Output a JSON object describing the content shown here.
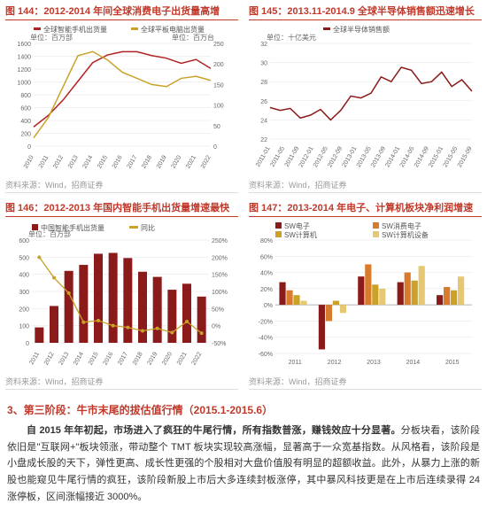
{
  "c144": {
    "title": "图 144：2012-2014 年间全球消费电子出货量高增",
    "source": "资料来源：Wind，招商证券",
    "unit_left": "单位：百万部",
    "unit_right": "单位：百万台",
    "legend": [
      "全球智能手机出货量",
      "全球平板电脑出货量"
    ],
    "colors": [
      "#b22222",
      "#c9a227"
    ],
    "years": [
      "2010",
      "2011",
      "2012",
      "2013",
      "2014",
      "2015",
      "2016",
      "2017",
      "2018",
      "2019",
      "2020",
      "2021",
      "2022"
    ],
    "series1": [
      300,
      480,
      720,
      1010,
      1300,
      1420,
      1470,
      1470,
      1410,
      1370,
      1290,
      1350,
      1210
    ],
    "series2": [
      20,
      70,
      145,
      220,
      230,
      210,
      180,
      165,
      150,
      145,
      165,
      170,
      160
    ],
    "ylim1": [
      0,
      1600
    ],
    "ytick1": 200,
    "ylim2": [
      0,
      250
    ],
    "ytick2": 50,
    "bg": "#ffffff",
    "grid": "#e0e0e0",
    "label_fs": 8,
    "tick_fs": 7
  },
  "c145": {
    "title": "图 145：2013.11-2014.9 全球半导体销售额迅速增长",
    "source": "资料来源：Wind，招商证券",
    "unit_left": "单位：十亿美元",
    "legend": [
      "全球半导体销售额"
    ],
    "colors": [
      "#8b1a1a"
    ],
    "xticks": [
      "2011-01",
      "2011-05",
      "2011-09",
      "2012-01",
      "2012-05",
      "2012-09",
      "2013-01",
      "2013-05",
      "2013-09",
      "2014-01",
      "2014-05",
      "2014-09",
      "2015-01",
      "2015-05",
      "2015-09"
    ],
    "values": [
      25.3,
      25.0,
      25.2,
      24.2,
      24.5,
      25.1,
      24.0,
      25.0,
      26.5,
      26.3,
      26.8,
      28.5,
      28.0,
      29.5,
      29.2,
      27.8,
      28.0,
      29.0,
      27.5,
      28.2,
      27.0
    ],
    "ylim": [
      22,
      32
    ],
    "ytick": 2,
    "bg": "#ffffff",
    "grid": "#e0e0e0",
    "label_fs": 8,
    "tick_fs": 7
  },
  "c146": {
    "title": "图 146：2012-2013 年国内智能手机出货量增速最快",
    "source": "资料来源：Wind，招商证券",
    "unit_left": "单位：百万部",
    "legend": [
      "中国智能手机出货量",
      "同比"
    ],
    "bar_color": "#8b1a1a",
    "line_color": "#c9a227",
    "years": [
      "2011",
      "2012",
      "2013",
      "2014",
      "2015",
      "2016",
      "2017",
      "2018",
      "2019",
      "2020",
      "2021",
      "2022"
    ],
    "bars": [
      90,
      215,
      420,
      455,
      520,
      525,
      495,
      415,
      385,
      310,
      345,
      270
    ],
    "line": [
      200,
      140,
      95,
      10,
      15,
      0,
      -5,
      -15,
      -8,
      -20,
      12,
      -22
    ],
    "ylim1": [
      0,
      600
    ],
    "ytick1": 100,
    "ylim2": [
      -50,
      250
    ],
    "ytick2": 50,
    "bg": "#ffffff",
    "grid": "#e0e0e0",
    "label_fs": 8,
    "tick_fs": 7
  },
  "c147": {
    "title": "图 147：2013-2014 年电子、计算机板块净利润增速",
    "source": "资料来源：Wind，招商证券",
    "legend": [
      "SW电子",
      "SW消费电子",
      "SW计算机",
      "SW计算机设备"
    ],
    "colors": [
      "#8b1a1a",
      "#d97b2d",
      "#c9a227",
      "#e6c873"
    ],
    "years": [
      "2011",
      "2012",
      "2013",
      "2014",
      "2015"
    ],
    "data": [
      [
        28,
        18,
        12,
        5
      ],
      [
        -55,
        -20,
        5,
        -10
      ],
      [
        35,
        50,
        25,
        20
      ],
      [
        28,
        40,
        30,
        48
      ],
      [
        12,
        22,
        18,
        35
      ]
    ],
    "ylim": [
      -60,
      80
    ],
    "ytick": 20,
    "bg": "#ffffff",
    "grid": "#e0e0e0",
    "label_fs": 8,
    "tick_fs": 7
  },
  "section": {
    "head": "3、第三阶段：牛市末尾的拔估值行情（2015.1-2015.6）",
    "p1a": "自 2015 年年初起，市场进入了疯狂的牛尾行情，所有指数普涨，赚钱效应十分显著。",
    "p1b": "分板块看，该阶段依旧是\"互联网+\"板块领涨，带动整个 TMT 板块实现较高涨幅，显著高于一众宽基指数。从风格看，该阶段是小盘成长股的天下，弹性更高、成长性更强的个股相对大盘价值股有明显的超额收益。此外，从暴力上涨的新股也能窥见牛尾行情的疯狂，该阶段新股上市后大多连续封板涨停，其中暴风科技更是在上市后连续录得 24 涨停板，区间涨幅接近 3000%。"
  }
}
